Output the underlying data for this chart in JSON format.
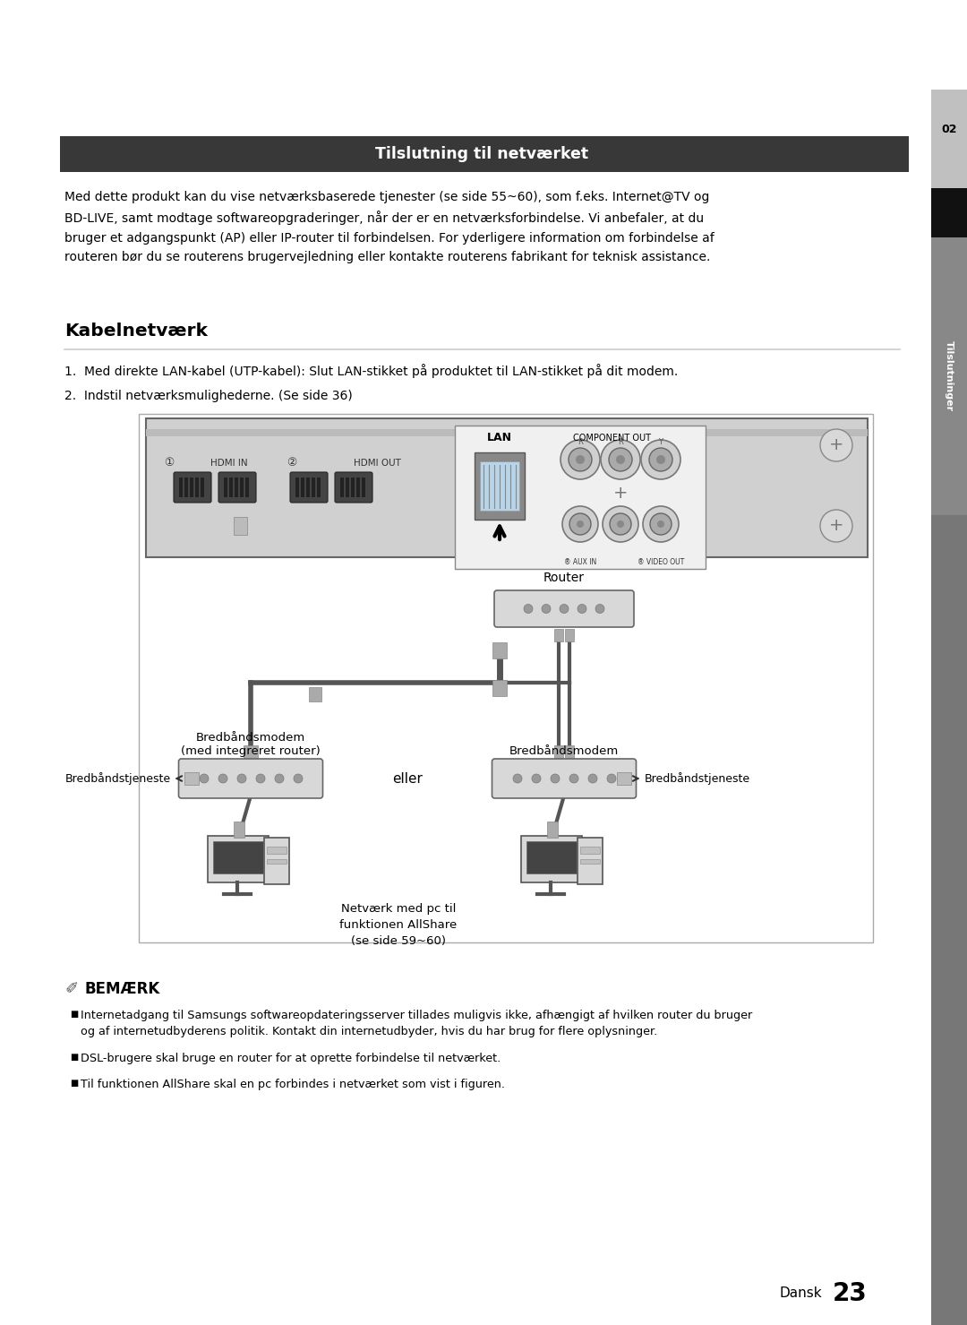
{
  "bg_color": "#ffffff",
  "header_bar_color": "#383838",
  "header_text": "Tilslutning til netværket",
  "header_text_color": "#ffffff",
  "section_number": "02",
  "section_label": "Tilslutninger",
  "body_text": "Med dette produkt kan du vise netværksbaserede tjenester (se side 55~60), som f.eks. Internet@TV og\nBD-LIVE, samt modtage softwareopgraderinger, når der er en netværksforbindelse. Vi anbefaler, at du\nbruger et adgangspunkt (AP) eller IP-router til forbindelsen. For yderligere information om forbindelse af\nrouteren bør du se routerens brugervejledning eller kontakte routerens fabrikant for teknisk assistance.",
  "section_title": "Kabelnetværk",
  "step1": "1.  Med direkte LAN-kabel (UTP-kabel): Slut LAN-stikket på produktet til LAN-stikket på dit modem.",
  "step2": "2.  Indstil netværksmulighederne. (Se side 36)",
  "lbl_router": "Router",
  "lbl_modem_left": "Bredbåndsmodem\n(med integreret router)",
  "lbl_service_left": "Bredbåndstjeneste",
  "lbl_modem_right": "Bredbåndsmodem",
  "lbl_service_right": "Bredbåndstjeneste",
  "lbl_eller": "eller",
  "lbl_pc": "Netværk med pc til\nfunktionen AllShare\n(se side 59~60)",
  "note_title": "BEMÆRK",
  "note_bullets": [
    "Internetadgang til Samsungs softwareopdateringsserver tillades muligvis ikke, afhængigt af hvilken router du bruger\nog af internetudbyderens politik. Kontakt din internetudbyder, hvis du har brug for flere oplysninger.",
    "DSL-brugere skal bruge en router for at oprette forbindelse til netværket.",
    "Til funktionen AllShare skal en pc forbindes i netværket som vist i figuren."
  ],
  "footer_lang": "Dansk",
  "footer_page": "23",
  "sidebar_lt": "#b0b0b0",
  "sidebar_dk": "#000000",
  "sidebar_md": "#888888"
}
